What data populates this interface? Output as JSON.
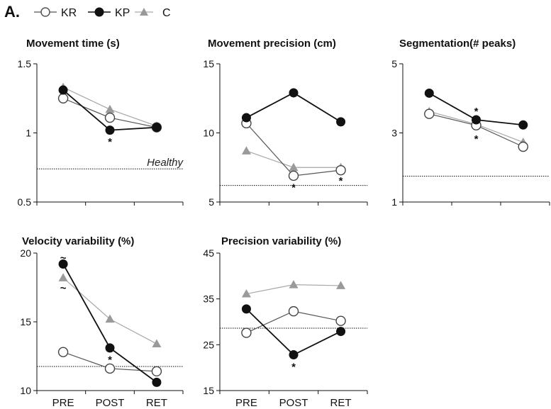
{
  "figure_label": "A.",
  "legend": [
    {
      "name": "KR",
      "marker": "open-circle",
      "color": "#555555"
    },
    {
      "name": "KP",
      "marker": "filled-circle",
      "color": "#111111"
    },
    {
      "name": "C",
      "marker": "triangle",
      "color": "#999999"
    }
  ],
  "healthy_label": "Healthy",
  "colors": {
    "kr": "#555555",
    "kp": "#111111",
    "c": "#a0a0a0",
    "axis": "#111111"
  },
  "chart_data": [
    {
      "type": "line",
      "title": "Movement time (s)",
      "categories": [
        "PRE",
        "POST",
        "RET"
      ],
      "ylim": [
        0.5,
        1.5
      ],
      "yticks": [
        0.5,
        1,
        1.5
      ],
      "ytick_labels": [
        "0.5",
        "1",
        "1.5"
      ],
      "show_xticklabels": false,
      "series": [
        {
          "name": "KR",
          "values": [
            1.25,
            1.11,
            1.04
          ]
        },
        {
          "name": "KP",
          "values": [
            1.31,
            1.02,
            1.04
          ]
        },
        {
          "name": "C",
          "values": [
            1.33,
            1.17,
            1.05
          ]
        }
      ],
      "reference": 0.74,
      "reference_label": true,
      "annotations": [
        {
          "text": "*",
          "x": 1,
          "y": 0.94
        }
      ]
    },
    {
      "type": "line",
      "title": "Movement precision (cm)",
      "categories": [
        "PRE",
        "POST",
        "RET"
      ],
      "ylim": [
        5,
        15
      ],
      "yticks": [
        5,
        10,
        15
      ],
      "ytick_labels": [
        "5",
        "10",
        "15"
      ],
      "show_xticklabels": false,
      "series": [
        {
          "name": "KR",
          "values": [
            10.7,
            6.9,
            7.3
          ]
        },
        {
          "name": "KP",
          "values": [
            11.1,
            12.9,
            10.8
          ]
        },
        {
          "name": "C",
          "values": [
            8.7,
            7.5,
            7.5
          ]
        }
      ],
      "reference": 6.2,
      "reference_label": false,
      "annotations": [
        {
          "text": "*",
          "x": 1,
          "y": 6.1
        },
        {
          "text": "*",
          "x": 2,
          "y": 6.6
        }
      ]
    },
    {
      "type": "line",
      "title": "Segmentation(# peaks)",
      "categories": [
        "PRE",
        "POST",
        "RET"
      ],
      "ylim": [
        1,
        5
      ],
      "yticks": [
        1,
        3,
        5
      ],
      "ytick_labels": [
        "1",
        "3",
        "5"
      ],
      "show_xticklabels": false,
      "series": [
        {
          "name": "KR",
          "values": [
            3.55,
            3.22,
            2.6
          ]
        },
        {
          "name": "KP",
          "values": [
            4.15,
            3.38,
            3.23
          ]
        },
        {
          "name": "C",
          "values": [
            3.62,
            3.25,
            2.73
          ]
        }
      ],
      "reference": 1.75,
      "reference_label": false,
      "annotations": [
        {
          "text": "*",
          "x": 1,
          "y": 3.65
        },
        {
          "text": "*",
          "x": 1,
          "y": 2.85
        }
      ]
    },
    {
      "type": "line",
      "title": "Velocity variability (%)",
      "categories": [
        "PRE",
        "POST",
        "RET"
      ],
      "ylim": [
        10,
        20
      ],
      "yticks": [
        10,
        15,
        20
      ],
      "ytick_labels": [
        "10",
        "15",
        "20"
      ],
      "show_xticklabels": true,
      "series": [
        {
          "name": "KR",
          "values": [
            12.8,
            11.6,
            11.4
          ]
        },
        {
          "name": "KP",
          "values": [
            19.2,
            13.1,
            10.6
          ]
        },
        {
          "name": "C",
          "values": [
            18.2,
            15.2,
            13.4
          ]
        }
      ],
      "reference": 11.75,
      "reference_label": false,
      "annotations": [
        {
          "text": "~",
          "x": 0,
          "y": 19.7
        },
        {
          "text": "~",
          "x": 0,
          "y": 17.5
        },
        {
          "text": "*",
          "x": 1,
          "y": 12.3
        }
      ]
    },
    {
      "type": "line",
      "title": "Precision variability (%)",
      "categories": [
        "PRE",
        "POST",
        "RET"
      ],
      "ylim": [
        15,
        45
      ],
      "yticks": [
        15,
        25,
        35,
        45
      ],
      "ytick_labels": [
        "15",
        "25",
        "35",
        "45"
      ],
      "show_xticklabels": true,
      "series": [
        {
          "name": "KR",
          "values": [
            27.6,
            32.3,
            30.2
          ]
        },
        {
          "name": "KP",
          "values": [
            32.8,
            22.8,
            27.9
          ]
        },
        {
          "name": "C",
          "values": [
            36.1,
            38.1,
            37.9
          ]
        }
      ],
      "reference": 28.6,
      "reference_label": false,
      "annotations": [
        {
          "text": "*",
          "x": 1,
          "y": 20.3
        }
      ]
    }
  ]
}
